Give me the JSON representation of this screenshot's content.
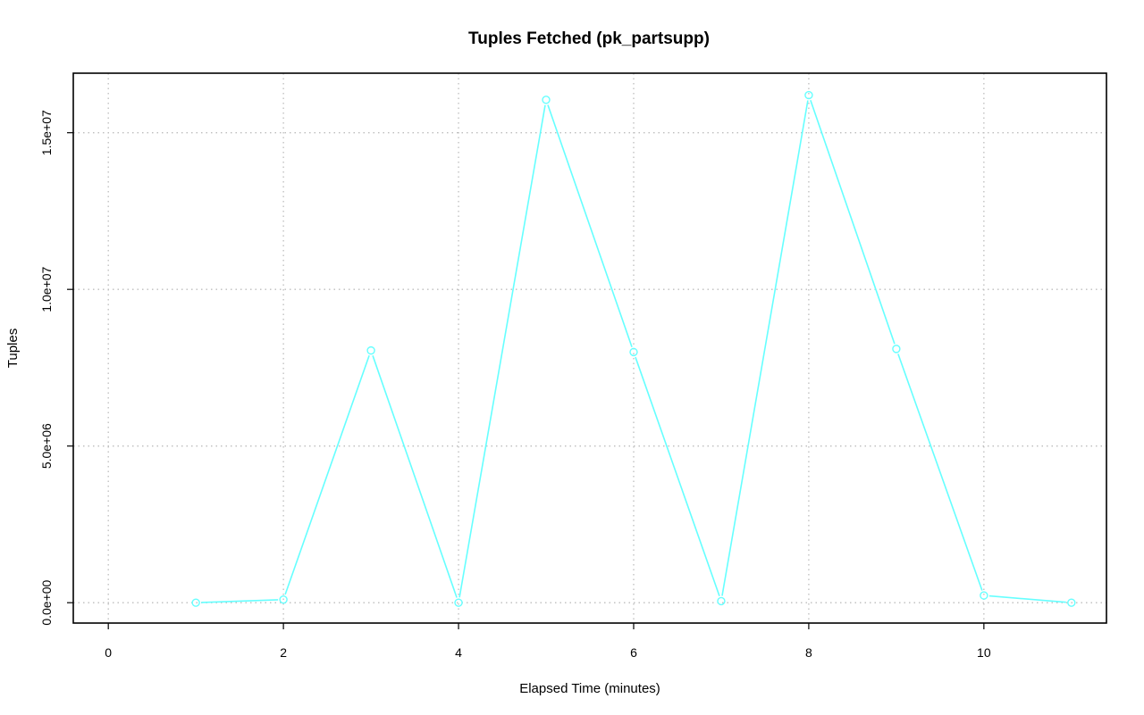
{
  "chart_data": {
    "type": "line",
    "title": "Tuples Fetched (pk_partsupp)",
    "xlabel": "Elapsed Time (minutes)",
    "ylabel": "Tuples",
    "xlim": [
      -0.4,
      11.4
    ],
    "ylim": [
      -650000,
      16900000
    ],
    "x_ticks": [
      0,
      2,
      4,
      6,
      8,
      10
    ],
    "x_tick_labels": [
      "0",
      "2",
      "4",
      "6",
      "8",
      "10"
    ],
    "y_ticks": [
      0,
      5000000,
      10000000,
      15000000
    ],
    "y_tick_labels": [
      "0.0e+00",
      "5.0e+06",
      "1.0e+07",
      "1.5e+07"
    ],
    "grid": true,
    "series": [
      {
        "color": "#66ffff",
        "marker": "open-circle",
        "x": [
          1,
          2,
          3,
          4,
          5,
          6,
          7,
          8,
          9,
          10,
          11
        ],
        "y": [
          0,
          100000,
          8050000,
          0,
          16050000,
          8000000,
          50000,
          16200000,
          8100000,
          230000,
          0
        ]
      }
    ]
  }
}
